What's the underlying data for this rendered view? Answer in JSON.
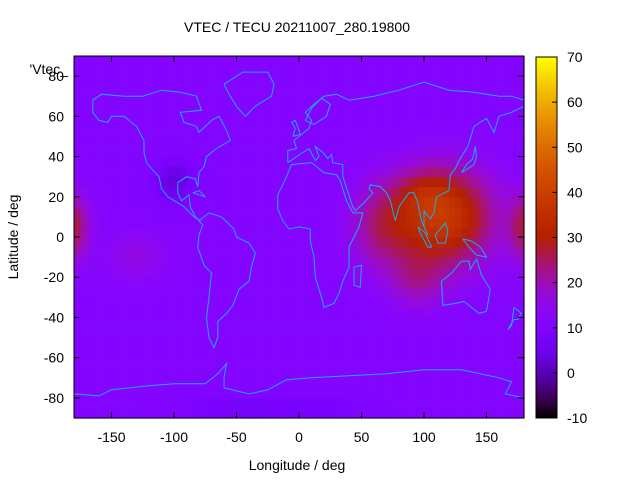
{
  "chart_data": {
    "type": "heatmap",
    "title": "VTEC / TECU 20211007_280.19800",
    "xlabel": "Longitude / deg",
    "ylabel": "Latitude / deg",
    "xlim": [
      -180,
      180
    ],
    "ylim": [
      -90,
      90
    ],
    "x_ticks": [
      "-150",
      "-100",
      "-50",
      "0",
      "50",
      "100",
      "150"
    ],
    "x_tick_values": [
      -150,
      -100,
      -50,
      0,
      50,
      100,
      150
    ],
    "y_ticks": [
      "-80",
      "-60",
      "-40",
      "-20",
      "0",
      "20",
      "40",
      "60",
      "80"
    ],
    "y_tick_values": [
      -80,
      -60,
      -40,
      -20,
      0,
      20,
      40,
      60,
      80
    ],
    "colorbar": {
      "range": [
        -10,
        70
      ],
      "ticks": [
        "70",
        "60",
        "50",
        "40",
        "30",
        "20",
        "10",
        "0",
        "-10"
      ],
      "tick_values": [
        70,
        60,
        50,
        40,
        30,
        20,
        10,
        0,
        -10
      ]
    },
    "legend_key": "'Vtec_",
    "background_level": 11,
    "features": [
      {
        "lon": 115,
        "lat": 10,
        "spread_lon": 40,
        "spread_lat": 24,
        "amp": 27
      },
      {
        "lon": 100,
        "lat": 22,
        "spread_lon": 22,
        "spread_lat": 10,
        "amp": 6
      },
      {
        "lon": 65,
        "lat": 5,
        "spread_lon": 25,
        "spread_lat": 22,
        "amp": 10
      },
      {
        "lon": 95,
        "lat": -22,
        "spread_lon": 22,
        "spread_lat": 14,
        "amp": 8
      },
      {
        "lon": -180,
        "lat": 5,
        "spread_lon": 12,
        "spread_lat": 16,
        "amp": 14
      },
      {
        "lon": -130,
        "lat": -10,
        "spread_lon": 25,
        "spread_lat": 12,
        "amp": 5
      },
      {
        "lon": -100,
        "lat": 28,
        "spread_lon": 15,
        "spread_lat": 10,
        "amp": -8
      },
      {
        "lon": -45,
        "lat": -85,
        "spread_lon": 45,
        "spread_lat": 6,
        "amp": -4
      },
      {
        "lon": 20,
        "lat": -85,
        "spread_lon": 30,
        "spread_lat": 6,
        "amp": -3
      }
    ],
    "coastlines": [
      {
        "name": "north-america",
        "points": [
          [
            -165,
            68
          ],
          [
            -158,
            71
          ],
          [
            -140,
            70
          ],
          [
            -125,
            70
          ],
          [
            -110,
            73
          ],
          [
            -95,
            72
          ],
          [
            -82,
            70
          ],
          [
            -78,
            63
          ],
          [
            -95,
            62
          ],
          [
            -92,
            57
          ],
          [
            -82,
            55
          ],
          [
            -80,
            52
          ],
          [
            -70,
            58
          ],
          [
            -64,
            60
          ],
          [
            -58,
            53
          ],
          [
            -55,
            48
          ],
          [
            -66,
            44
          ],
          [
            -70,
            42
          ],
          [
            -74,
            40
          ],
          [
            -76,
            35
          ],
          [
            -80,
            32
          ],
          [
            -81,
            25
          ],
          [
            -83,
            29
          ],
          [
            -90,
            30
          ],
          [
            -97,
            27
          ],
          [
            -97,
            22
          ],
          [
            -94,
            18
          ],
          [
            -88,
            21
          ],
          [
            -87,
            15
          ],
          [
            -83,
            10
          ],
          [
            -79,
            8
          ],
          [
            -84,
            10
          ],
          [
            -92,
            15
          ],
          [
            -105,
            20
          ],
          [
            -110,
            24
          ],
          [
            -112,
            30
          ],
          [
            -118,
            34
          ],
          [
            -122,
            37
          ],
          [
            -124,
            42
          ],
          [
            -124,
            48
          ],
          [
            -130,
            55
          ],
          [
            -140,
            60
          ],
          [
            -150,
            60
          ],
          [
            -153,
            57
          ],
          [
            -160,
            58
          ],
          [
            -165,
            62
          ],
          [
            -165,
            68
          ]
        ]
      },
      {
        "name": "greenland",
        "points": [
          [
            -60,
            76
          ],
          [
            -45,
            82
          ],
          [
            -25,
            82
          ],
          [
            -20,
            76
          ],
          [
            -22,
            70
          ],
          [
            -35,
            65
          ],
          [
            -43,
            60
          ],
          [
            -50,
            65
          ],
          [
            -55,
            70
          ],
          [
            -60,
            76
          ]
        ]
      },
      {
        "name": "south-america",
        "points": [
          [
            -80,
            8
          ],
          [
            -72,
            12
          ],
          [
            -62,
            10
          ],
          [
            -52,
            4
          ],
          [
            -50,
            0
          ],
          [
            -40,
            -3
          ],
          [
            -35,
            -8
          ],
          [
            -38,
            -15
          ],
          [
            -40,
            -22
          ],
          [
            -48,
            -26
          ],
          [
            -53,
            -34
          ],
          [
            -58,
            -38
          ],
          [
            -65,
            -42
          ],
          [
            -65,
            -50
          ],
          [
            -68,
            -55
          ],
          [
            -72,
            -50
          ],
          [
            -74,
            -40
          ],
          [
            -72,
            -30
          ],
          [
            -70,
            -18
          ],
          [
            -76,
            -14
          ],
          [
            -81,
            -5
          ],
          [
            -80,
            1
          ],
          [
            -77,
            6
          ],
          [
            -80,
            8
          ]
        ]
      },
      {
        "name": "africa",
        "points": [
          [
            -17,
            21
          ],
          [
            -10,
            30
          ],
          [
            -6,
            36
          ],
          [
            10,
            37
          ],
          [
            20,
            32
          ],
          [
            30,
            31
          ],
          [
            33,
            28
          ],
          [
            38,
            18
          ],
          [
            43,
            12
          ],
          [
            51,
            12
          ],
          [
            48,
            5
          ],
          [
            40,
            -5
          ],
          [
            40,
            -15
          ],
          [
            35,
            -22
          ],
          [
            32,
            -28
          ],
          [
            28,
            -33
          ],
          [
            20,
            -35
          ],
          [
            18,
            -30
          ],
          [
            13,
            -20
          ],
          [
            12,
            -10
          ],
          [
            9,
            -2
          ],
          [
            9,
            4
          ],
          [
            0,
            5
          ],
          [
            -8,
            4
          ],
          [
            -13,
            8
          ],
          [
            -17,
            14
          ],
          [
            -17,
            21
          ]
        ]
      },
      {
        "name": "madagascar",
        "points": [
          [
            44,
            -15
          ],
          [
            50,
            -14
          ],
          [
            49,
            -25
          ],
          [
            44,
            -24
          ],
          [
            44,
            -15
          ]
        ]
      },
      {
        "name": "eurasia",
        "points": [
          [
            -9,
            37
          ],
          [
            -9,
            43
          ],
          [
            -2,
            44
          ],
          [
            -4,
            48
          ],
          [
            2,
            51
          ],
          [
            8,
            54
          ],
          [
            10,
            58
          ],
          [
            5,
            62
          ],
          [
            12,
            66
          ],
          [
            20,
            70
          ],
          [
            30,
            71
          ],
          [
            40,
            68
          ],
          [
            60,
            70
          ],
          [
            80,
            73
          ],
          [
            100,
            77
          ],
          [
            120,
            73
          ],
          [
            140,
            72
          ],
          [
            160,
            70
          ],
          [
            170,
            70
          ],
          [
            180,
            68
          ],
          [
            180,
            65
          ],
          [
            170,
            62
          ],
          [
            160,
            60
          ],
          [
            156,
            52
          ],
          [
            150,
            59
          ],
          [
            140,
            55
          ],
          [
            135,
            45
          ],
          [
            128,
            38
          ],
          [
            125,
            34
          ],
          [
            121,
            31
          ],
          [
            120,
            23
          ],
          [
            110,
            20
          ],
          [
            108,
            12
          ],
          [
            105,
            9
          ],
          [
            100,
            13
          ],
          [
            100,
            5
          ],
          [
            103,
            1
          ],
          [
            98,
            8
          ],
          [
            95,
            17
          ],
          [
            92,
            22
          ],
          [
            88,
            22
          ],
          [
            80,
            15
          ],
          [
            77,
            8
          ],
          [
            73,
            18
          ],
          [
            70,
            22
          ],
          [
            65,
            25
          ],
          [
            57,
            26
          ],
          [
            56,
            24
          ],
          [
            59,
            22
          ],
          [
            52,
            17
          ],
          [
            45,
            13
          ],
          [
            43,
            15
          ],
          [
            35,
            30
          ],
          [
            35,
            36
          ],
          [
            27,
            37
          ],
          [
            26,
            41
          ],
          [
            23,
            39
          ],
          [
            19,
            42
          ],
          [
            13,
            45
          ],
          [
            16,
            40
          ],
          [
            13,
            38
          ],
          [
            8,
            44
          ],
          [
            3,
            42
          ],
          [
            -9,
            37
          ]
        ]
      },
      {
        "name": "scandinavia-arm",
        "points": [
          [
            5,
            58
          ],
          [
            10,
            64
          ],
          [
            18,
            69
          ],
          [
            25,
            66
          ],
          [
            22,
            60
          ],
          [
            12,
            56
          ],
          [
            5,
            58
          ]
        ]
      },
      {
        "name": "japan",
        "points": [
          [
            130,
            32
          ],
          [
            135,
            34
          ],
          [
            140,
            36
          ],
          [
            142,
            40
          ],
          [
            141,
            45
          ],
          [
            139,
            39
          ],
          [
            134,
            36
          ],
          [
            130,
            32
          ]
        ]
      },
      {
        "name": "borneo",
        "points": [
          [
            109,
            1
          ],
          [
            113,
            4
          ],
          [
            117,
            7
          ],
          [
            119,
            3
          ],
          [
            117,
            -3
          ],
          [
            111,
            -3
          ],
          [
            109,
            1
          ]
        ]
      },
      {
        "name": "sumatra",
        "points": [
          [
            95,
            5
          ],
          [
            101,
            2
          ],
          [
            106,
            -5
          ],
          [
            103,
            -5
          ],
          [
            97,
            2
          ],
          [
            95,
            5
          ]
        ]
      },
      {
        "name": "new-guinea",
        "points": [
          [
            131,
            -1
          ],
          [
            138,
            -2
          ],
          [
            145,
            -5
          ],
          [
            150,
            -10
          ],
          [
            142,
            -9
          ],
          [
            136,
            -5
          ],
          [
            131,
            -1
          ]
        ]
      },
      {
        "name": "australia",
        "points": [
          [
            114,
            -22
          ],
          [
            122,
            -18
          ],
          [
            130,
            -12
          ],
          [
            136,
            -12
          ],
          [
            137,
            -16
          ],
          [
            142,
            -11
          ],
          [
            146,
            -19
          ],
          [
            153,
            -26
          ],
          [
            150,
            -37
          ],
          [
            144,
            -38
          ],
          [
            138,
            -35
          ],
          [
            132,
            -32
          ],
          [
            125,
            -33
          ],
          [
            115,
            -34
          ],
          [
            114,
            -22
          ]
        ]
      },
      {
        "name": "new-zealand",
        "points": [
          [
            172,
            -35
          ],
          [
            178,
            -38
          ],
          [
            175,
            -41
          ],
          [
            172,
            -41
          ],
          [
            167,
            -46
          ],
          [
            170,
            -44
          ],
          [
            172,
            -35
          ]
        ]
      },
      {
        "name": "uk",
        "points": [
          [
            -5,
            50
          ],
          [
            1,
            51
          ],
          [
            0,
            53
          ],
          [
            -3,
            58
          ],
          [
            -6,
            57
          ],
          [
            -3,
            54
          ],
          [
            -5,
            50
          ]
        ]
      },
      {
        "name": "cuba",
        "points": [
          [
            -85,
            22
          ],
          [
            -75,
            20
          ],
          [
            -80,
            23
          ],
          [
            -85,
            22
          ]
        ]
      },
      {
        "name": "antarctica",
        "points": [
          [
            -180,
            -78
          ],
          [
            -160,
            -79
          ],
          [
            -150,
            -76
          ],
          [
            -120,
            -74
          ],
          [
            -100,
            -73
          ],
          [
            -75,
            -73
          ],
          [
            -65,
            -68
          ],
          [
            -58,
            -63
          ],
          [
            -60,
            -70
          ],
          [
            -60,
            -75
          ],
          [
            -40,
            -78
          ],
          [
            -25,
            -76
          ],
          [
            -10,
            -71
          ],
          [
            10,
            -70
          ],
          [
            40,
            -69
          ],
          [
            70,
            -68
          ],
          [
            100,
            -66
          ],
          [
            130,
            -66
          ],
          [
            160,
            -70
          ],
          [
            170,
            -72
          ],
          [
            165,
            -78
          ],
          [
            180,
            -80
          ]
        ]
      }
    ]
  }
}
